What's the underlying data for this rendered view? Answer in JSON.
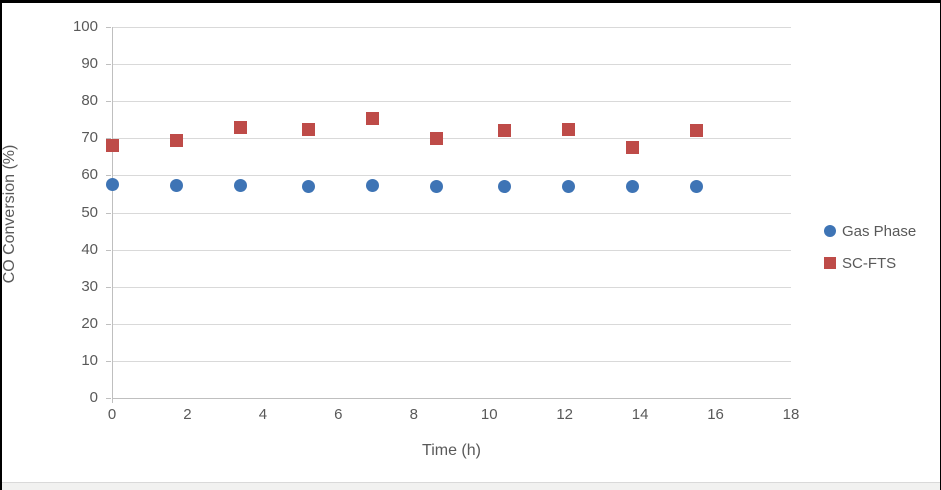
{
  "chart_data": {
    "type": "scatter",
    "title": "",
    "xlabel": "Time (h)",
    "ylabel": "CO Conversion (%)",
    "xlim": [
      0,
      18
    ],
    "ylim": [
      0,
      100
    ],
    "xticks": [
      0,
      2,
      4,
      6,
      8,
      10,
      12,
      14,
      16,
      18
    ],
    "yticks": [
      0,
      10,
      20,
      30,
      40,
      50,
      60,
      70,
      80,
      90,
      100
    ],
    "grid": "horizontal-gridlines",
    "legend_position": "right-middle",
    "x": [
      0,
      1.7,
      3.4,
      5.2,
      6.9,
      8.6,
      10.4,
      12.1,
      13.8,
      15.5
    ],
    "series": [
      {
        "name": "Gas Phase",
        "marker": "circle",
        "color": "#3E74B5",
        "values": [
          57.5,
          57.2,
          57.2,
          57.1,
          57.3,
          57.1,
          56.9,
          57.0,
          57.0,
          57.0
        ]
      },
      {
        "name": "SC-FTS",
        "marker": "square",
        "color": "#BE4B48",
        "values": [
          68.0,
          69.5,
          73.0,
          72.5,
          75.3,
          70.0,
          72.0,
          72.3,
          67.6,
          72.0
        ]
      }
    ]
  },
  "colors": {
    "background": "#FFFFFF",
    "frame": "#000000",
    "gridline": "#D9D9D9",
    "axis_line": "#BFBFBF",
    "tick_label": "#595959",
    "axis_title": "#595959",
    "legend_text": "#595959"
  }
}
